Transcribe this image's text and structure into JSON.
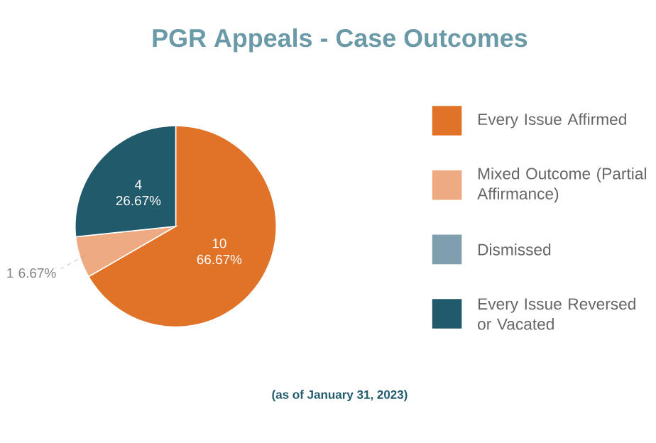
{
  "chart_data": {
    "type": "pie",
    "title": "PGR Appeals - Case Outcomes",
    "categories": [
      "Every Issue Affirmed",
      "Mixed Outcome (Partial Affirmance)",
      "Dismissed",
      "Every Issue Reversed or Vacated"
    ],
    "values": [
      10,
      1,
      0,
      4
    ],
    "colors": [
      "#e07328",
      "#eeaa80",
      "#7f9fae",
      "#215a6b"
    ],
    "value_labels": [
      "10 66.67%",
      "1 6.67%",
      null,
      "4 26.67%"
    ],
    "legend": "right",
    "annotations": [
      "(as of January 31, 2023)"
    ]
  }
}
